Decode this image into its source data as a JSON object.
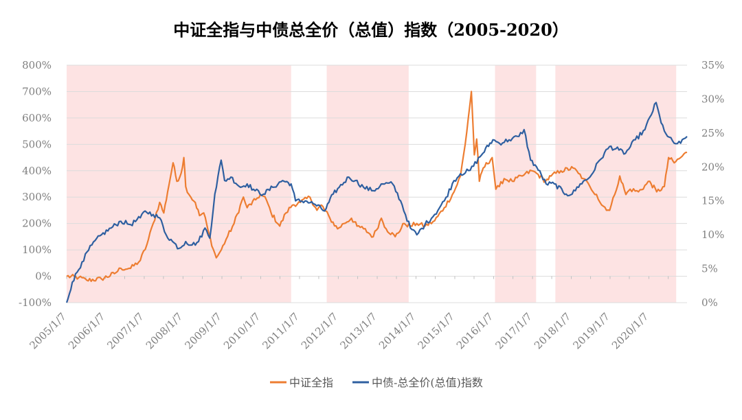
{
  "chart_data": {
    "type": "line",
    "title": "中证全指与中债总全价（总值）指数（2005-2020）",
    "left_axis": {
      "ylim": [
        -100,
        800
      ],
      "ticks": [
        "-100%",
        "0%",
        "100%",
        "200%",
        "300%",
        "400%",
        "500%",
        "600%",
        "700%",
        "800%"
      ]
    },
    "right_axis": {
      "ylim": [
        0,
        35
      ],
      "ticks": [
        "0%",
        "5%",
        "10%",
        "15%",
        "20%",
        "25%",
        "30%",
        "35%"
      ]
    },
    "x_range": [
      "2005-01-07",
      "2020-12-31"
    ],
    "x_ticks": [
      "2005/1/7",
      "2006/1/7",
      "2007/1/7",
      "2008/1/7",
      "2009/1/7",
      "2010/1/7",
      "2011/1/7",
      "2012/1/7",
      "2013/1/7",
      "2014/1/7",
      "2015/1/7",
      "2016/1/7",
      "2017/1/7",
      "2018/1/7",
      "2019/1/7",
      "2020/1/7"
    ],
    "shaded_periods": [
      [
        "2005-01-07",
        "2010-10-20"
      ],
      [
        "2011-09-20",
        "2013-10-30"
      ],
      [
        "2016-01-20",
        "2017-02-10"
      ],
      [
        "2017-08-10",
        "2020-09-20"
      ]
    ],
    "legend_position": "bottom",
    "grid": true,
    "series": [
      {
        "name": "中证全指",
        "axis": "left",
        "color": "#ed7d31",
        "points": [
          [
            "2005-01-07",
            0
          ],
          [
            "2005-05-01",
            -5
          ],
          [
            "2005-07-15",
            -15
          ],
          [
            "2005-12-01",
            -10
          ],
          [
            "2006-04-01",
            10
          ],
          [
            "2006-06-01",
            30
          ],
          [
            "2006-09-01",
            30
          ],
          [
            "2006-12-01",
            60
          ],
          [
            "2007-02-01",
            120
          ],
          [
            "2007-04-01",
            200
          ],
          [
            "2007-06-01",
            280
          ],
          [
            "2007-07-10",
            240
          ],
          [
            "2007-08-15",
            320
          ],
          [
            "2007-10-05",
            430
          ],
          [
            "2007-11-10",
            360
          ],
          [
            "2007-12-20",
            390
          ],
          [
            "2008-01-15",
            450
          ],
          [
            "2008-02-01",
            340
          ],
          [
            "2008-03-20",
            300
          ],
          [
            "2008-05-01",
            280
          ],
          [
            "2008-06-10",
            230
          ],
          [
            "2008-07-20",
            240
          ],
          [
            "2008-09-01",
            170
          ],
          [
            "2008-10-20",
            100
          ],
          [
            "2008-11-15",
            70
          ],
          [
            "2009-01-01",
            100
          ],
          [
            "2009-02-15",
            140
          ],
          [
            "2009-05-01",
            200
          ],
          [
            "2009-07-28",
            300
          ],
          [
            "2009-09-01",
            260
          ],
          [
            "2009-11-20",
            290
          ],
          [
            "2010-01-05",
            310
          ],
          [
            "2010-03-01",
            290
          ],
          [
            "2010-04-15",
            240
          ],
          [
            "2010-07-05",
            190
          ],
          [
            "2010-09-01",
            240
          ],
          [
            "2010-11-01",
            270
          ],
          [
            "2011-01-15",
            280
          ],
          [
            "2011-04-15",
            300
          ],
          [
            "2011-06-20",
            250
          ],
          [
            "2011-08-01",
            270
          ],
          [
            "2011-10-20",
            220
          ],
          [
            "2011-12-31",
            180
          ],
          [
            "2012-03-01",
            200
          ],
          [
            "2012-05-10",
            220
          ],
          [
            "2012-07-01",
            190
          ],
          [
            "2012-09-01",
            180
          ],
          [
            "2012-12-01",
            150
          ],
          [
            "2013-02-15",
            220
          ],
          [
            "2013-04-01",
            180
          ],
          [
            "2013-06-25",
            150
          ],
          [
            "2013-09-20",
            200
          ],
          [
            "2013-11-15",
            190
          ],
          [
            "2014-01-15",
            200
          ],
          [
            "2014-04-01",
            190
          ],
          [
            "2014-07-01",
            210
          ],
          [
            "2014-09-30",
            260
          ],
          [
            "2014-12-31",
            320
          ],
          [
            "2015-03-01",
            380
          ],
          [
            "2015-04-15",
            500
          ],
          [
            "2015-06-12",
            700
          ],
          [
            "2015-07-10",
            460
          ],
          [
            "2015-08-01",
            520
          ],
          [
            "2015-08-26",
            360
          ],
          [
            "2015-10-01",
            410
          ],
          [
            "2015-12-25",
            450
          ],
          [
            "2016-01-28",
            330
          ],
          [
            "2016-03-01",
            340
          ],
          [
            "2016-04-15",
            370
          ],
          [
            "2016-07-01",
            360
          ],
          [
            "2016-10-01",
            380
          ],
          [
            "2016-12-31",
            400
          ],
          [
            "2017-02-15",
            390
          ],
          [
            "2017-05-10",
            360
          ],
          [
            "2017-07-01",
            380
          ],
          [
            "2017-10-01",
            400
          ],
          [
            "2018-01-25",
            410
          ],
          [
            "2018-03-15",
            390
          ],
          [
            "2018-05-01",
            370
          ],
          [
            "2018-07-01",
            340
          ],
          [
            "2018-09-01",
            310
          ],
          [
            "2018-10-20",
            270
          ],
          [
            "2019-01-03",
            250
          ],
          [
            "2019-02-20",
            310
          ],
          [
            "2019-04-08",
            380
          ],
          [
            "2019-06-05",
            310
          ],
          [
            "2019-07-15",
            330
          ],
          [
            "2019-10-01",
            320
          ],
          [
            "2020-01-15",
            360
          ],
          [
            "2020-03-20",
            320
          ],
          [
            "2020-06-01",
            340
          ],
          [
            "2020-07-10",
            450
          ],
          [
            "2020-09-01",
            430
          ],
          [
            "2020-11-01",
            450
          ],
          [
            "2020-12-31",
            470
          ]
        ]
      },
      {
        "name": "中债-总全价(总值)指数",
        "axis": "right",
        "color": "#2e5fa0",
        "points": [
          [
            "2005-01-07",
            0
          ],
          [
            "2005-03-01",
            3
          ],
          [
            "2005-06-01",
            6
          ],
          [
            "2005-09-01",
            8.5
          ],
          [
            "2005-12-01",
            10
          ],
          [
            "2006-03-01",
            11
          ],
          [
            "2006-06-01",
            12
          ],
          [
            "2006-09-01",
            11.5
          ],
          [
            "2006-12-01",
            12.5
          ],
          [
            "2007-01-15",
            13.5
          ],
          [
            "2007-04-01",
            13
          ],
          [
            "2007-06-01",
            12.5
          ],
          [
            "2007-08-01",
            10
          ],
          [
            "2007-10-01",
            9
          ],
          [
            "2007-12-01",
            8
          ],
          [
            "2008-02-01",
            9
          ],
          [
            "2008-04-01",
            8.5
          ],
          [
            "2008-06-01",
            9
          ],
          [
            "2008-08-01",
            11
          ],
          [
            "2008-09-15",
            9.5
          ],
          [
            "2008-11-01",
            16
          ],
          [
            "2008-12-31",
            21
          ],
          [
            "2009-02-01",
            18
          ],
          [
            "2009-04-01",
            18.5
          ],
          [
            "2009-07-01",
            17
          ],
          [
            "2009-09-01",
            17.5
          ],
          [
            "2009-11-15",
            16.5
          ],
          [
            "2010-02-01",
            16
          ],
          [
            "2010-05-01",
            17
          ],
          [
            "2010-08-01",
            18
          ],
          [
            "2010-10-20",
            17.5
          ],
          [
            "2010-12-01",
            15
          ],
          [
            "2011-03-01",
            15
          ],
          [
            "2011-06-01",
            14.5
          ],
          [
            "2011-09-01",
            13.5
          ],
          [
            "2011-11-20",
            16
          ],
          [
            "2012-01-15",
            17
          ],
          [
            "2012-04-15",
            18.5
          ],
          [
            "2012-06-15",
            18
          ],
          [
            "2012-09-01",
            17
          ],
          [
            "2012-12-01",
            16.5
          ],
          [
            "2013-03-01",
            17.5
          ],
          [
            "2013-06-01",
            17.5
          ],
          [
            "2013-08-15",
            15
          ],
          [
            "2013-11-15",
            11
          ],
          [
            "2014-01-15",
            10
          ],
          [
            "2014-04-01",
            11.5
          ],
          [
            "2014-07-01",
            13
          ],
          [
            "2014-10-01",
            15
          ],
          [
            "2014-12-31",
            18
          ],
          [
            "2015-03-01",
            19
          ],
          [
            "2015-06-01",
            19.5
          ],
          [
            "2015-09-01",
            21.5
          ],
          [
            "2015-12-31",
            24
          ],
          [
            "2016-03-01",
            23.5
          ],
          [
            "2016-06-01",
            24
          ],
          [
            "2016-09-01",
            24.5
          ],
          [
            "2016-10-20",
            25.5
          ],
          [
            "2016-12-20",
            21
          ],
          [
            "2017-02-15",
            20
          ],
          [
            "2017-05-15",
            17.5
          ],
          [
            "2017-08-01",
            17.5
          ],
          [
            "2017-11-20",
            16
          ],
          [
            "2018-01-15",
            16
          ],
          [
            "2018-04-01",
            17.5
          ],
          [
            "2018-07-01",
            18.5
          ],
          [
            "2018-10-01",
            21
          ],
          [
            "2019-01-01",
            23
          ],
          [
            "2019-04-01",
            22.5
          ],
          [
            "2019-06-01",
            22
          ],
          [
            "2019-09-01",
            24
          ],
          [
            "2019-12-01",
            25.5
          ],
          [
            "2020-03-15",
            29.5
          ],
          [
            "2020-05-01",
            26.5
          ],
          [
            "2020-07-01",
            24.5
          ],
          [
            "2020-09-01",
            23.5
          ],
          [
            "2020-11-01",
            23.5
          ],
          [
            "2020-12-31",
            24.5
          ]
        ]
      }
    ]
  }
}
